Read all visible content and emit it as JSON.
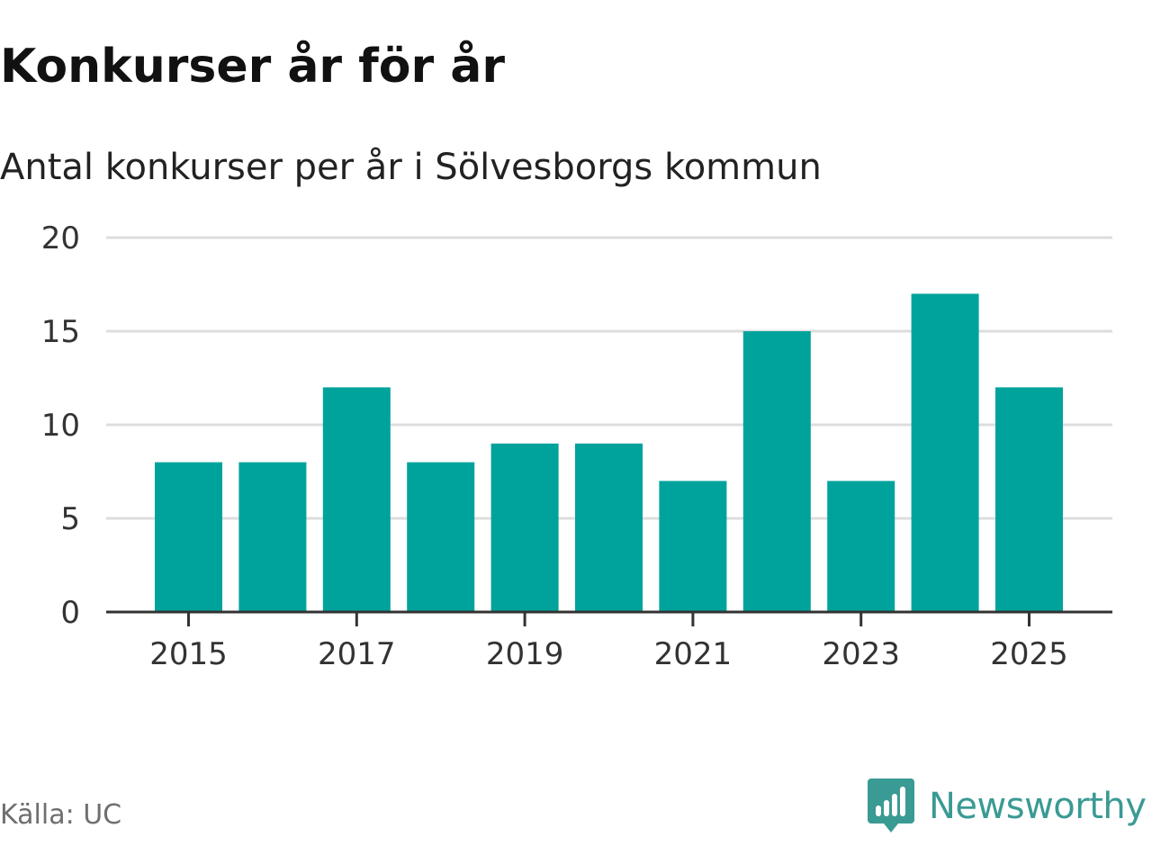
{
  "chart_data": {
    "type": "bar",
    "title": "Konkurser år för år",
    "subtitle": "Antal konkurser per år i Sölvesborgs kommun",
    "categories": [
      2015,
      2016,
      2017,
      2018,
      2019,
      2020,
      2021,
      2022,
      2023,
      2024,
      2025
    ],
    "values": [
      8,
      8,
      12,
      8,
      9,
      9,
      7,
      15,
      7,
      17,
      12
    ],
    "x_tick_labels": [
      "2015",
      "2017",
      "2019",
      "2021",
      "2023",
      "2025"
    ],
    "y_ticks": [
      0,
      5,
      10,
      15,
      20
    ],
    "ylim": [
      0,
      20
    ],
    "xlabel": "",
    "ylabel": "",
    "grid": true,
    "legend": false,
    "bar_color": "#00a39b",
    "gridline_color": "#dddddd",
    "axis_color": "#333333"
  },
  "footer": {
    "source": "Källa: UC",
    "brand": "Newsworthy",
    "brand_icon": "newsworthy-logo-icon",
    "brand_color": "#3a9a94"
  }
}
